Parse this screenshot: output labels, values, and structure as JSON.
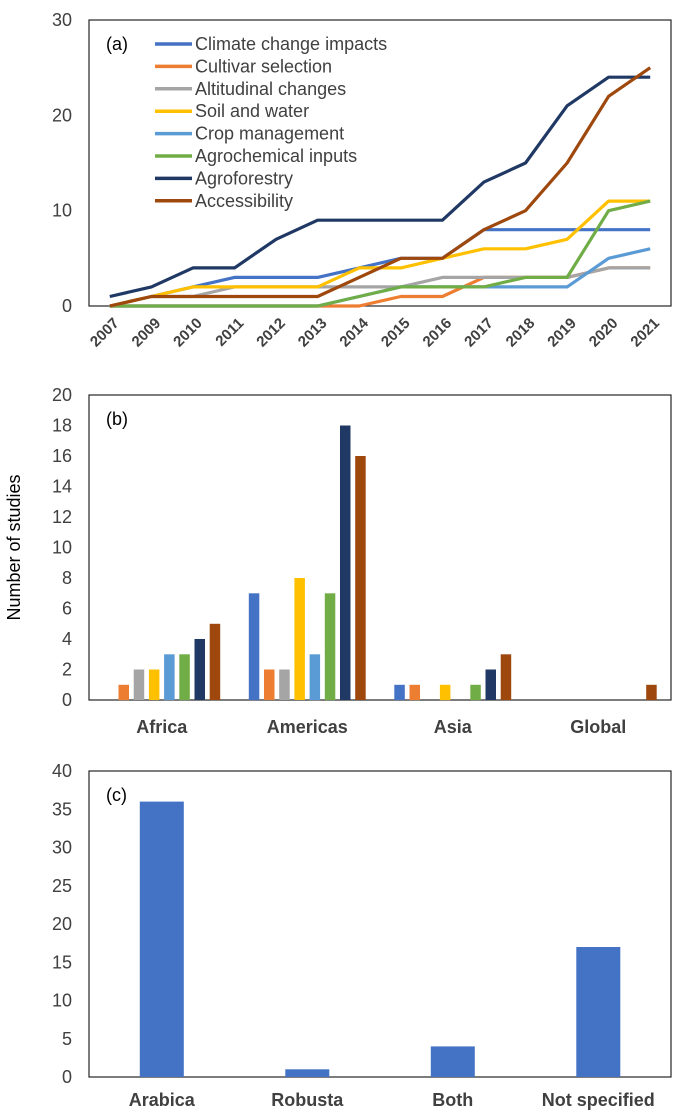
{
  "chart_data": [
    {
      "type": "line",
      "panel_label": "(a)",
      "x": [
        "2007",
        "2009",
        "2010",
        "2011",
        "2012",
        "2013",
        "2014",
        "2015",
        "2016",
        "2017",
        "2018",
        "2019",
        "2020",
        "2021"
      ],
      "ylim": [
        0,
        30
      ],
      "yticks": [
        "0",
        "10",
        "20",
        "30"
      ],
      "legend_position": "top-left",
      "series": [
        {
          "name": "Climate change impacts",
          "color": "#4472C4",
          "values": [
            0,
            1,
            2,
            3,
            3,
            3,
            4,
            5,
            5,
            8,
            8,
            8,
            8,
            8
          ]
        },
        {
          "name": "Cultivar selection",
          "color": "#ED7D31",
          "values": [
            0,
            0,
            0,
            0,
            0,
            0,
            0,
            1,
            1,
            3,
            3,
            3,
            4,
            4
          ]
        },
        {
          "name": "Altitudinal changes",
          "color": "#A5A5A5",
          "values": [
            0,
            1,
            1,
            2,
            2,
            2,
            2,
            2,
            3,
            3,
            3,
            3,
            4,
            4
          ]
        },
        {
          "name": "Soil and water",
          "color": "#FFC000",
          "values": [
            0,
            1,
            2,
            2,
            2,
            2,
            4,
            4,
            5,
            6,
            6,
            7,
            11,
            11
          ]
        },
        {
          "name": "Crop management",
          "color": "#5B9BD5",
          "values": [
            0,
            0,
            0,
            0,
            0,
            0,
            1,
            2,
            2,
            2,
            2,
            2,
            5,
            6
          ]
        },
        {
          "name": "Agrochemical inputs",
          "color": "#70AD47",
          "values": [
            0,
            0,
            0,
            0,
            0,
            0,
            1,
            2,
            2,
            2,
            3,
            3,
            10,
            11
          ]
        },
        {
          "name": "Agroforestry",
          "color": "#203864",
          "values": [
            1,
            2,
            4,
            4,
            7,
            9,
            9,
            9,
            9,
            13,
            15,
            21,
            24,
            24
          ]
        },
        {
          "name": "Accessibility",
          "color": "#9E480E",
          "values": [
            0,
            1,
            1,
            1,
            1,
            1,
            3,
            5,
            5,
            8,
            10,
            15,
            22,
            25
          ]
        }
      ]
    },
    {
      "type": "bar",
      "panel_label": "(b)",
      "ylabel": "Number of studies",
      "categories": [
        "Africa",
        "Americas",
        "Asia",
        "Global"
      ],
      "ylim": [
        0,
        20
      ],
      "yticks": [
        "0",
        "2",
        "4",
        "6",
        "8",
        "10",
        "12",
        "14",
        "16",
        "18",
        "20"
      ],
      "series": [
        {
          "color": "#4472C4",
          "values": [
            0,
            7,
            1,
            0
          ]
        },
        {
          "color": "#ED7D31",
          "values": [
            1,
            2,
            1,
            0
          ]
        },
        {
          "color": "#A5A5A5",
          "values": [
            2,
            2,
            0,
            0
          ]
        },
        {
          "color": "#FFC000",
          "values": [
            2,
            8,
            1,
            0
          ]
        },
        {
          "color": "#5B9BD5",
          "values": [
            3,
            3,
            0,
            0
          ]
        },
        {
          "color": "#70AD47",
          "values": [
            3,
            7,
            1,
            0
          ]
        },
        {
          "color": "#203864",
          "values": [
            4,
            18,
            2,
            0
          ]
        },
        {
          "color": "#9E480E",
          "values": [
            5,
            16,
            3,
            1
          ]
        }
      ]
    },
    {
      "type": "bar",
      "panel_label": "(c)",
      "categories": [
        "Arabica",
        "Robusta",
        "Both",
        "Not specified"
      ],
      "values": [
        36,
        1,
        4,
        17
      ],
      "color": "#4472C4",
      "ylim": [
        0,
        40
      ],
      "yticks": [
        "0",
        "5",
        "10",
        "15",
        "20",
        "25",
        "30",
        "35",
        "40"
      ]
    }
  ]
}
